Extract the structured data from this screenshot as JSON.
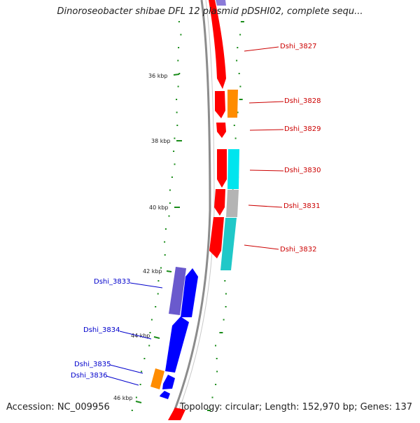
{
  "title": "Dinoroseobacter shibae DFL 12 plasmid pDSHI02, complete sequ...",
  "accession": "Accession: NC_009956",
  "summary": "Topology: circular; Length: 152,970 bp; Genes: 137",
  "ticks": [
    {
      "label": "36 kbp"
    },
    {
      "label": "38 kbp"
    },
    {
      "label": "40 kbp"
    },
    {
      "label": "42 kbp"
    },
    {
      "label": "44 kbp"
    },
    {
      "label": "46 kbp"
    }
  ],
  "genes_forward": [
    {
      "label": "Dshi_3827"
    },
    {
      "label": "Dshi_3828"
    },
    {
      "label": "Dshi_3829"
    },
    {
      "label": "Dshi_3830"
    },
    {
      "label": "Dshi_3831"
    },
    {
      "label": "Dshi_3832"
    }
  ],
  "genes_reverse": [
    {
      "label": "Dshi_3833"
    },
    {
      "label": "Dshi_3834"
    },
    {
      "label": "Dshi_3835"
    },
    {
      "label": "Dshi_3836"
    }
  ],
  "colors": {
    "forward_cds": "#ff0000",
    "reverse_cds": "#0000ff",
    "cog_orange": "#ff8c00",
    "cog_cyan": "#00e5ee",
    "cog_gray": "#b4b4b4",
    "cog_teal": "#20c8c8",
    "cog_purple": "#6a5acd",
    "gc_dots": "#1a8c1a",
    "backbone": "#808080",
    "label_forward": "#cc0000",
    "label_reverse": "#0000cc"
  }
}
